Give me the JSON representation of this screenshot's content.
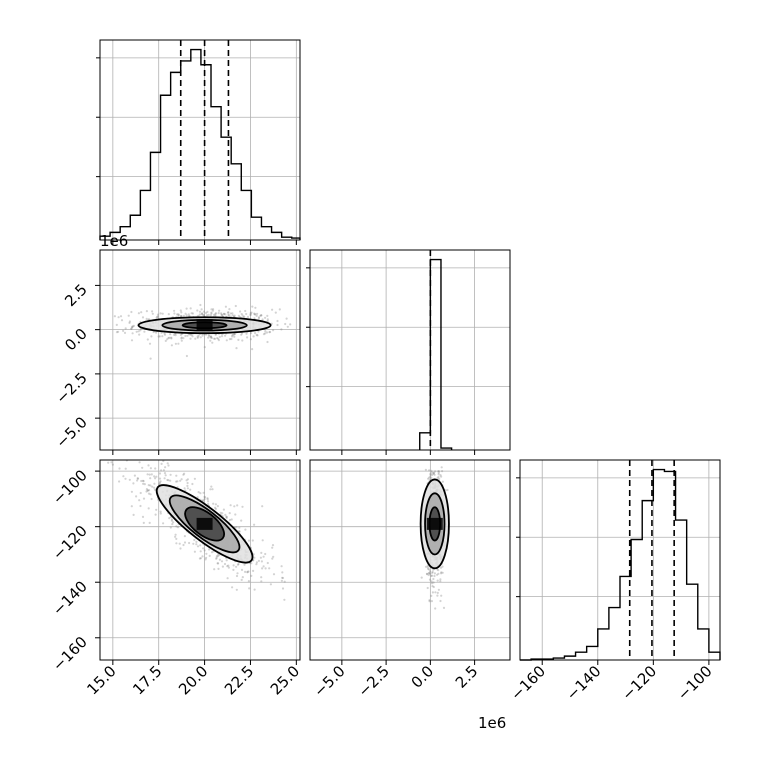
{
  "chart_data": {
    "type": "corner",
    "grid": true,
    "colors": {
      "line": "#000000",
      "grid": "#b0b0b0",
      "scatter": "#808080"
    },
    "diagonal": [
      {
        "param_index": 0,
        "type": "histogram",
        "xlim": [
          14.3,
          25.2
        ],
        "bins": [
          14.3,
          14.85,
          15.4,
          15.95,
          16.5,
          17.05,
          17.6,
          18.15,
          18.7,
          19.25,
          19.8,
          20.35,
          20.9,
          21.45,
          22.0,
          22.55,
          23.1,
          23.65,
          24.2,
          24.75,
          25.2
        ],
        "counts": [
          0.02,
          0.04,
          0.07,
          0.13,
          0.26,
          0.46,
          0.76,
          0.88,
          0.94,
          1.0,
          0.92,
          0.7,
          0.54,
          0.4,
          0.26,
          0.12,
          0.07,
          0.04,
          0.015,
          0.01
        ],
        "quantiles": [
          18.7,
          20.0,
          21.3
        ]
      },
      {
        "param_index": 1,
        "type": "histogram",
        "xlim": [
          -6.8,
          4.5
        ],
        "bins": [
          -0.6,
          0.0,
          0.6,
          1.2
        ],
        "counts": [
          0.09,
          1.0,
          0.01
        ],
        "quantiles": [
          0.0
        ]
      },
      {
        "param_index": 2,
        "type": "histogram",
        "xlim": [
          -168,
          -96
        ],
        "bins": [
          -168,
          -164,
          -160,
          -156,
          -152,
          -148,
          -144,
          -140,
          -136,
          -132,
          -128,
          -124,
          -120,
          -116,
          -112,
          -108,
          -104,
          -100,
          -96
        ],
        "counts": [
          0,
          0.005,
          0.005,
          0.01,
          0.02,
          0.04,
          0.07,
          0.16,
          0.27,
          0.43,
          0.62,
          0.82,
          0.98,
          0.97,
          0.72,
          0.39,
          0.16,
          0.04
        ],
        "quantiles": [
          -128.5,
          -120.5,
          -112.5
        ]
      }
    ],
    "off_diagonal": [
      {
        "x_param": 0,
        "y_param": 1,
        "type": "2d-density",
        "xlim": [
          14.3,
          25.2
        ],
        "ylim": [
          -6.8,
          4.5
        ],
        "center": [
          20.0,
          0.25
        ],
        "contour_half_widths": [
          [
            1.2,
            0.15
          ],
          [
            2.3,
            0.3
          ],
          [
            3.6,
            0.45
          ]
        ],
        "scatter_spread": [
          1.9,
          0.45
        ]
      },
      {
        "x_param": 0,
        "y_param": 2,
        "type": "2d-density",
        "xlim": [
          14.3,
          25.2
        ],
        "ylim": [
          -168,
          -96
        ],
        "center": [
          20.0,
          -119.0
        ],
        "contour_half_widths": [
          [
            1.4,
            5.5
          ],
          [
            2.6,
            10
          ],
          [
            3.6,
            15
          ]
        ],
        "correlation": -0.82,
        "scatter_spread": [
          1.9,
          10.5
        ]
      },
      {
        "x_param": 1,
        "y_param": 2,
        "type": "2d-density",
        "xlim": [
          -6.8,
          4.5
        ],
        "ylim": [
          -168,
          -96
        ],
        "center": [
          0.25,
          -119.0
        ],
        "contour_half_widths": [
          [
            0.3,
            6
          ],
          [
            0.55,
            11
          ],
          [
            0.8,
            16
          ]
        ],
        "scatter_spread": [
          0.25,
          10.5
        ]
      }
    ],
    "axes": {
      "param0_ticks": [
        15.0,
        17.5,
        20.0,
        22.5,
        25.0
      ],
      "param0_ticklabels": [
        "15.0",
        "17.5",
        "20.0",
        "22.5",
        "25.0"
      ],
      "param1_ticks": [
        -5.0,
        -2.5,
        0.0,
        2.5
      ],
      "param1_ticklabels": [
        "−5.0",
        "−2.5",
        "0.0",
        "2.5"
      ],
      "param1_x_ticklabels": [
        "−5.0",
        "−2.5",
        "0.0",
        "2.5"
      ],
      "param2_ticks": [
        -160,
        -140,
        -120,
        -100
      ],
      "param2_y_ticklabels": [
        "−160",
        "−140",
        "−120",
        "−100"
      ],
      "param2_x_ticks": [
        -160,
        -140,
        -120,
        -100
      ],
      "param2_x_ticklabels": [
        "−160",
        "−140",
        "−120",
        "−100"
      ]
    },
    "offset_labels": {
      "param1_y": "1e6",
      "param1_x": "1e6"
    }
  }
}
